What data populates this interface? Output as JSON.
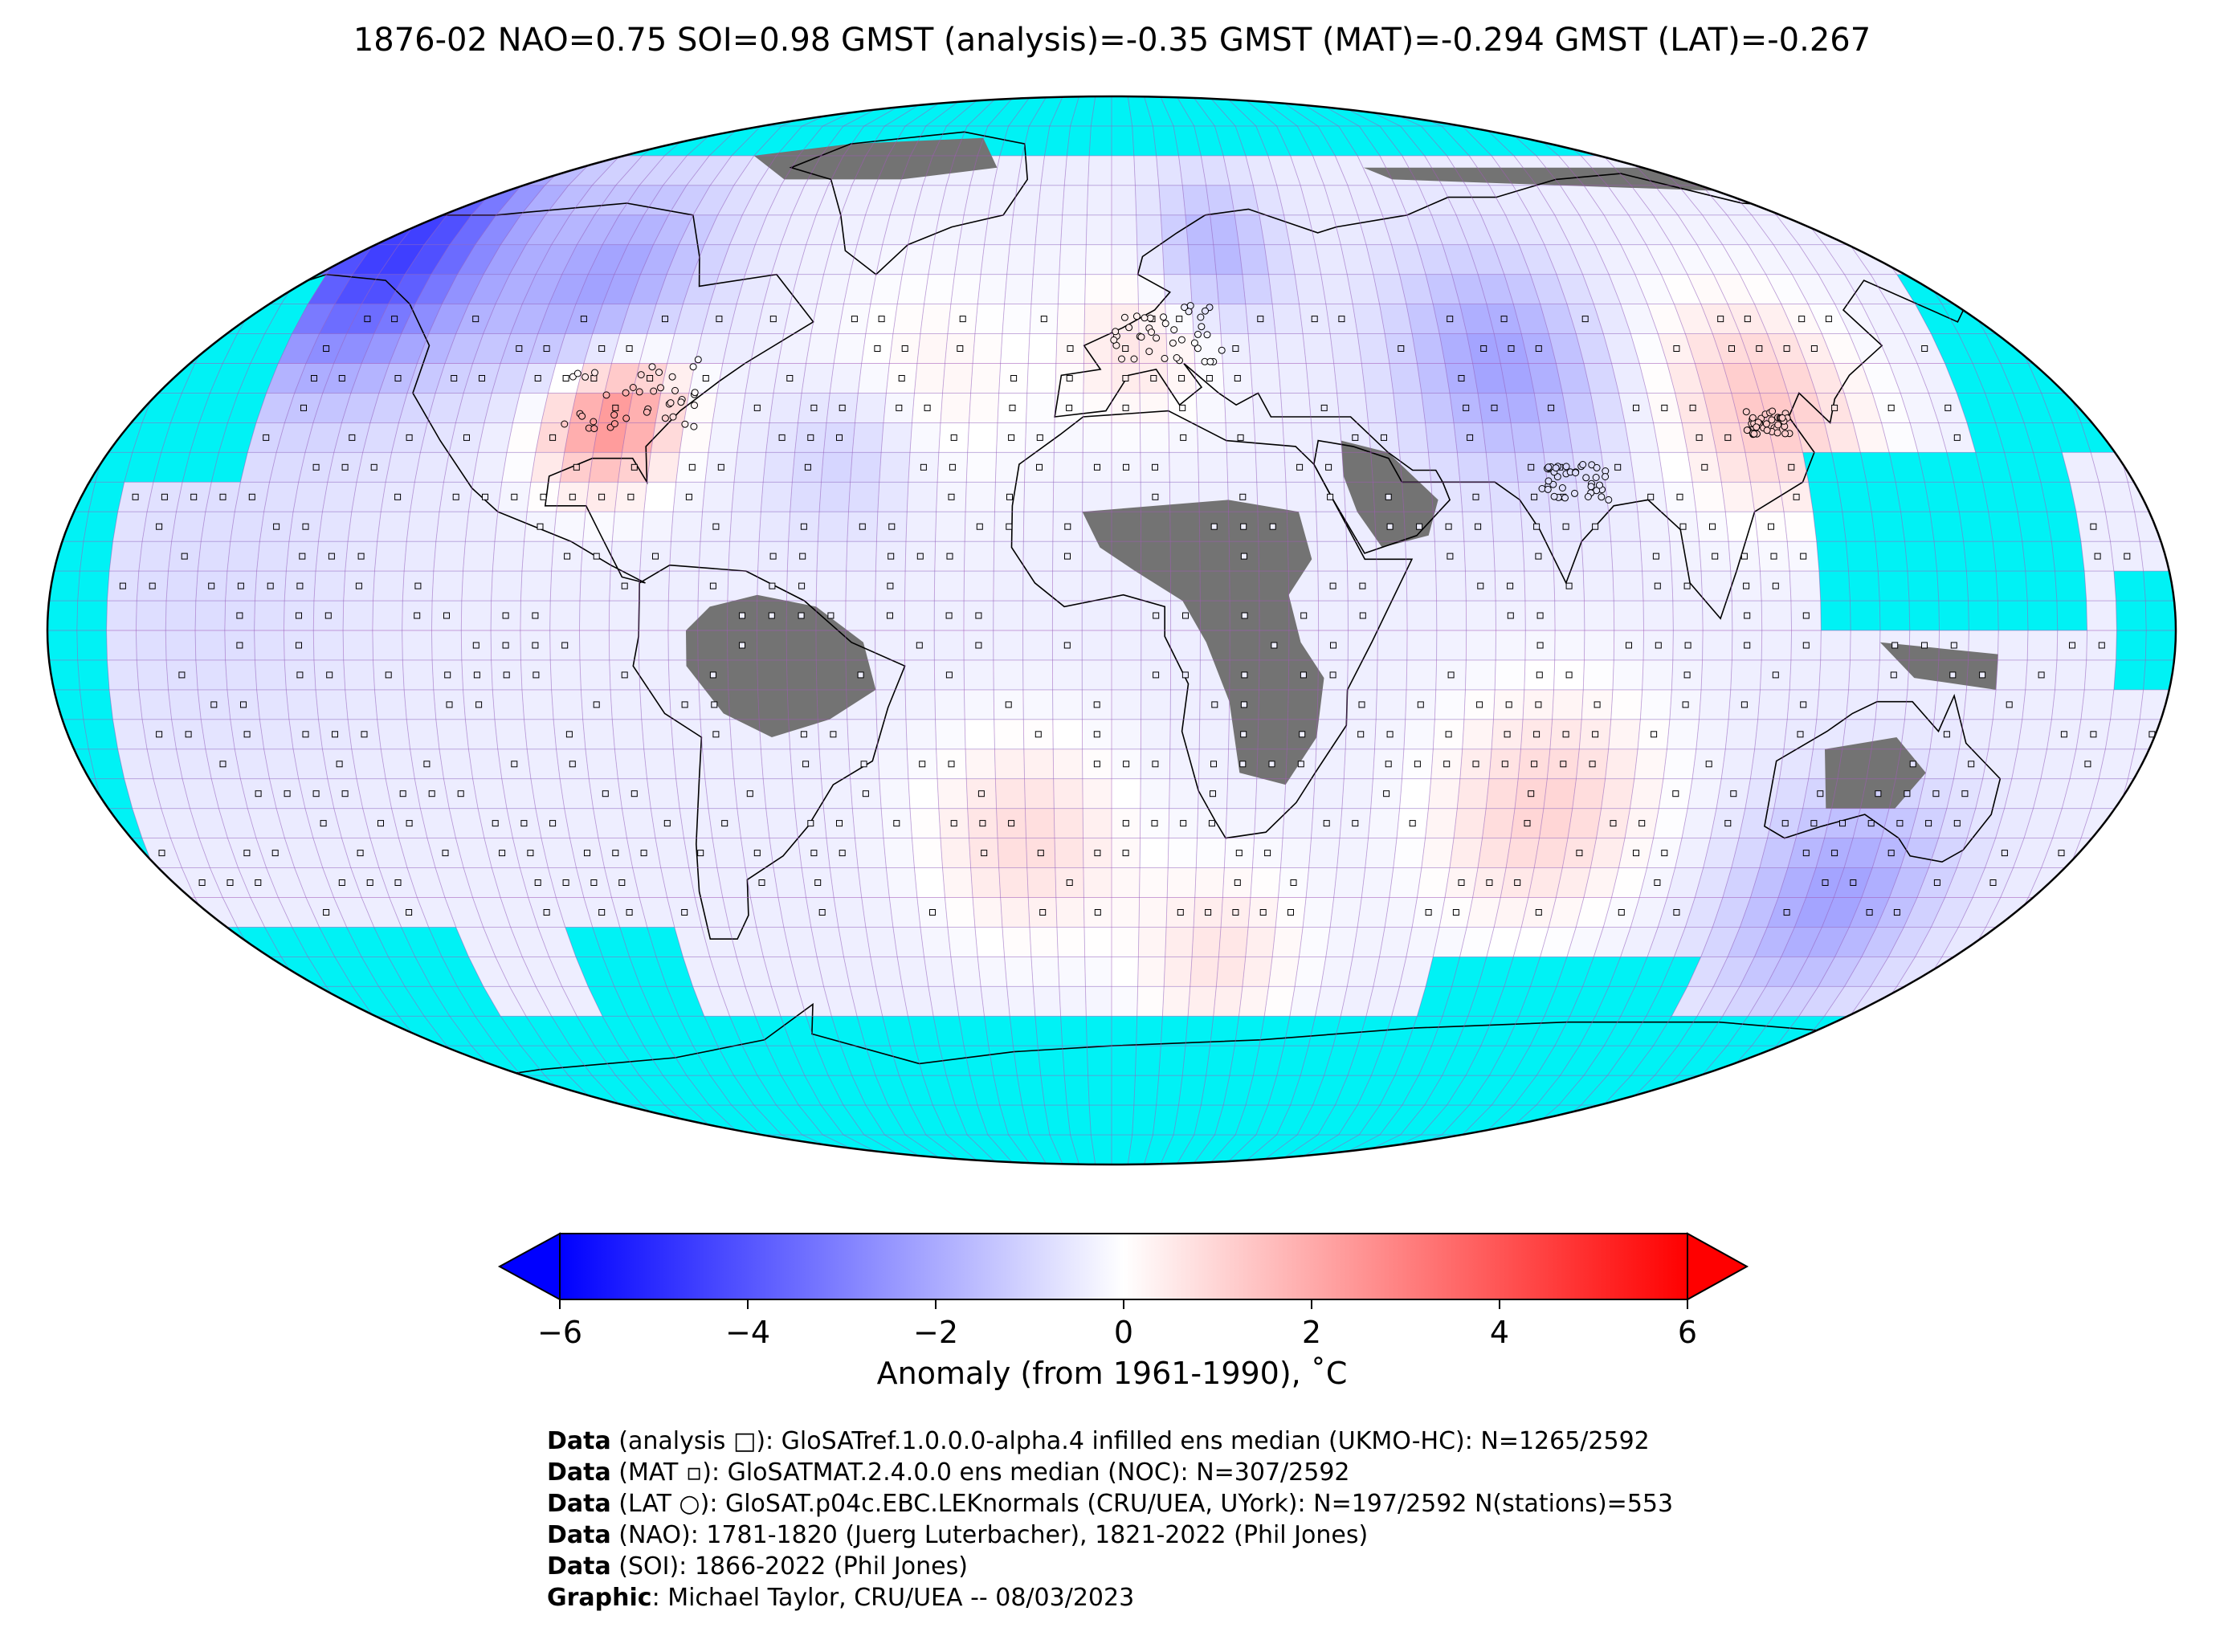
{
  "title": "1876-02 NAO=0.75 SOI=0.98 GMST (analysis)=-0.35 GMST (MAT)=-0.294 GMST (LAT)=-0.267",
  "colors": {
    "ocean_nodata": "#00f2f5",
    "land_nodata": "#737373",
    "grid": "#a259ba",
    "cold": "#0000ff",
    "neutral": "#ffffff",
    "warm": "#ff0000"
  },
  "colorbar": {
    "min": -6,
    "max": 6,
    "ticks": [
      "−6",
      "−4",
      "−2",
      "0",
      "2",
      "4",
      "6"
    ],
    "tick_values": [
      -6,
      -4,
      -2,
      0,
      2,
      4,
      6
    ],
    "extend": "both",
    "label": "Anomaly (from 1961-1990), ˚C"
  },
  "credits": [
    {
      "bold": "Data",
      "text": " (analysis □): GloSATref.1.0.0.0-alpha.4 infilled ens median (UKMO-HC): N=1265/2592"
    },
    {
      "bold": "Data",
      "text": " (MAT ▫): GloSATMAT.2.4.0.0 ens median (NOC): N=307/2592"
    },
    {
      "bold": "Data",
      "text": " (LAT ○): GloSAT.p04c.EBC.LEKnormals (CRU/UEA, UYork): N=197/2592 N(stations)=553"
    },
    {
      "bold": "Data",
      "text": " (NAO): 1781-1820 (Juerg Luterbacher), 1821-2022 (Phil Jones)"
    },
    {
      "bold": "Data",
      "text": " (SOI): 1866-2022 (Phil Jones)"
    },
    {
      "bold": "Graphic",
      "text": ": Michael Taylor, CRU/UEA -- 08/03/2023"
    }
  ],
  "anomaly_regions": [
    {
      "name": "Alaska / NW Canada",
      "value": -4.6
    },
    {
      "name": "Hudson Bay region",
      "value": -2.4
    },
    {
      "name": "Central-eastern USA",
      "value": 3.0
    },
    {
      "name": "North Atlantic subtropics",
      "value": 0.3
    },
    {
      "name": "Northwest Atlantic",
      "value": -1.2
    },
    {
      "name": "Scandinavia",
      "value": -1.6
    },
    {
      "name": "Western Europe",
      "value": 0.6
    },
    {
      "name": "Central Asia",
      "value": -2.0
    },
    {
      "name": "East Asia / China",
      "value": 1.4
    },
    {
      "name": "Tropical Pacific",
      "value": -0.9
    },
    {
      "name": "Tropical Atlantic",
      "value": -0.3
    },
    {
      "name": "Indian Ocean",
      "value": -0.4
    },
    {
      "name": "South Atlantic",
      "value": 0.9
    },
    {
      "name": "Southern Indian Ocean",
      "value": 1.0
    },
    {
      "name": "Southern Ocean south of Australia",
      "value": -2.0
    },
    {
      "name": "South Pacific",
      "value": -0.6
    }
  ]
}
